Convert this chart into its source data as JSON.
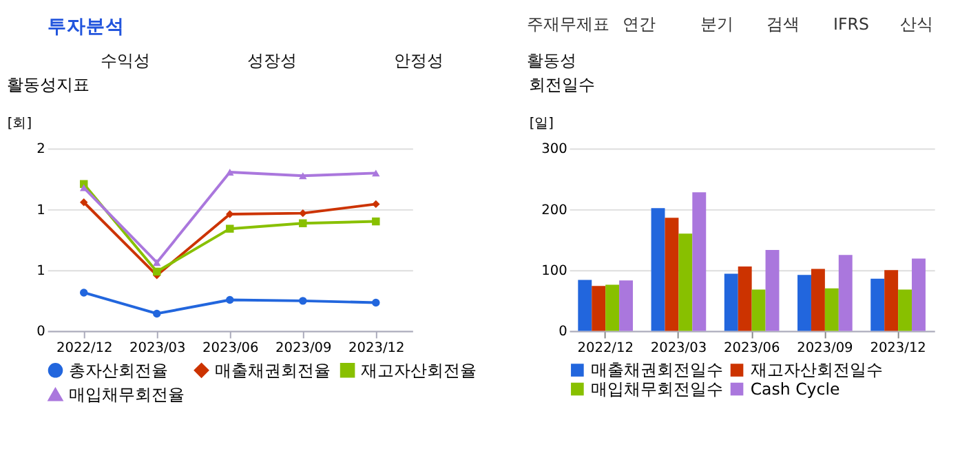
{
  "chart_data": [
    {
      "type": "line",
      "title": "활동성지표",
      "ylabel": "[회]",
      "categories": [
        "2022/12",
        "2023/03",
        "2023/06",
        "2023/09",
        "2023/12"
      ],
      "series": [
        {
          "name": "총자산회전율",
          "color": "#2266dd",
          "marker": "circle",
          "values": [
            0.42,
            0.19,
            0.34,
            0.33,
            0.31
          ]
        },
        {
          "name": "매출채권회전율",
          "color": "#cc3300",
          "marker": "diamond",
          "values": [
            1.41,
            0.61,
            1.28,
            1.29,
            1.39
          ]
        },
        {
          "name": "재고자산회전율",
          "color": "#88c000",
          "marker": "square",
          "values": [
            1.61,
            0.65,
            1.12,
            1.18,
            1.2
          ]
        },
        {
          "name": "매입채무회전율",
          "color": "#aa77dd",
          "marker": "triangle",
          "values": [
            1.57,
            0.75,
            1.74,
            1.7,
            1.73
          ]
        }
      ],
      "ylim": [
        0,
        2
      ],
      "yticks": [
        0,
        {
          "value": 0.667,
          "label": "1"
        },
        {
          "value": 1.333,
          "label": "1"
        },
        2
      ],
      "grid": "y",
      "legend": "bottom",
      "annotations": [
        "투자분석",
        "주재무제표",
        "연간",
        "분기",
        "검색",
        "IFRS",
        "산식",
        "수익성",
        "성장성",
        "안정성",
        "활동성"
      ]
    },
    {
      "type": "bar",
      "title": "회전일수",
      "ylabel": "[일]",
      "categories": [
        "2022/12",
        "2023/03",
        "2023/06",
        "2023/09",
        "2023/12"
      ],
      "series": [
        {
          "name": "매출채권회전일수",
          "color": "#2266dd",
          "values": [
            84,
            202,
            94,
            92,
            86
          ]
        },
        {
          "name": "재고자산회전일수",
          "color": "#cc3300",
          "values": [
            74,
            186,
            106,
            102,
            100
          ]
        },
        {
          "name": "매입채무회전일수",
          "color": "#88c000",
          "values": [
            76,
            160,
            68,
            70,
            68
          ]
        },
        {
          "name": "Cash Cycle",
          "color": "#aa77dd",
          "values": [
            83,
            228,
            133,
            125,
            119
          ]
        }
      ],
      "ylim": [
        0,
        300
      ],
      "yticks": [
        0,
        100,
        200,
        300
      ],
      "grid": "y",
      "legend": "bottom"
    }
  ]
}
